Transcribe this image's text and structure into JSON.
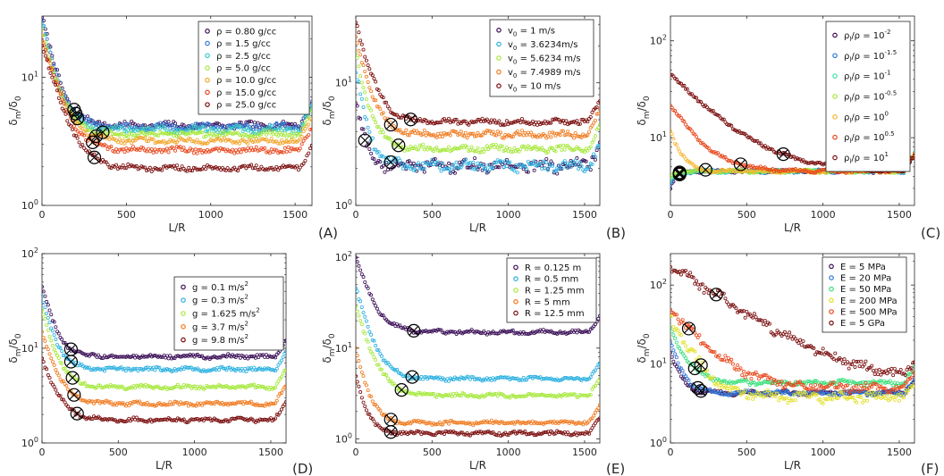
{
  "figure": {
    "xlabel": "L/R",
    "ylabel_main": "δ",
    "ylabel_num_sub": "m",
    "ylabel_sep": "/δ",
    "ylabel_den_sub": "0",
    "marker_symbol": "⊗"
  },
  "chart_data": [
    {
      "type": "scatter",
      "panel": "(A)",
      "xlabel": "L/R",
      "ylabel": "δm/δ0",
      "yscale": "log",
      "xlim": [
        0,
        1600
      ],
      "ylim": [
        1,
        30
      ],
      "xticks": [
        "0",
        "500",
        "1000",
        "1500"
      ],
      "yticks": [
        {
          "base": "10",
          "exp": "0",
          "v": 1
        },
        {
          "base": "10",
          "exp": "1",
          "v": 10
        }
      ],
      "legend_position": "top-right",
      "series": [
        {
          "name": "ρ = 0.80 g/cc",
          "color": "#3b0f57",
          "start": 30,
          "plateau": 4.2,
          "decay": 65,
          "noise": 0.05,
          "marker_x": 190
        },
        {
          "name": "ρ = 1.5 g/cc",
          "color": "#2e77d8",
          "start": 28,
          "plateau": 4.1,
          "decay": 65,
          "noise": 0.05,
          "marker_x": 200
        },
        {
          "name": "ρ = 2.5 g/cc",
          "color": "#38c9c4",
          "start": 26,
          "plateau": 3.9,
          "decay": 65,
          "noise": 0.05,
          "marker_x": 210
        },
        {
          "name": "ρ = 5.0 g/cc",
          "color": "#a5e83a",
          "start": 24,
          "plateau": 3.6,
          "decay": 70,
          "noise": 0.04,
          "marker_x": 360
        },
        {
          "name": "ρ = 10.0 g/cc",
          "color": "#f3a42a",
          "start": 22,
          "plateau": 3.2,
          "decay": 75,
          "noise": 0.04,
          "marker_x": 320
        },
        {
          "name": "ρ = 15.0 g/cc",
          "color": "#e8461a",
          "start": 20,
          "plateau": 2.7,
          "decay": 80,
          "noise": 0.04,
          "marker_x": 300
        },
        {
          "name": "ρ = 25.0 g/cc",
          "color": "#7a0d0d",
          "start": 18,
          "plateau": 1.95,
          "decay": 85,
          "noise": 0.04,
          "marker_x": 310
        }
      ]
    },
    {
      "type": "scatter",
      "panel": "(B)",
      "xlabel": "L/R",
      "ylabel": "δm/δ0",
      "yscale": "log",
      "xlim": [
        0,
        1600
      ],
      "ylim": [
        1,
        35
      ],
      "xticks": [
        "0",
        "500",
        "1000",
        "1500"
      ],
      "yticks": [
        {
          "base": "10",
          "exp": "0",
          "v": 1
        },
        {
          "base": "10",
          "exp": "1",
          "v": 10
        }
      ],
      "legend_position": "top-right",
      "series": [
        {
          "name": "v0 = 1 m/s",
          "color": "#3b0f57",
          "start": 7,
          "plateau": 2.1,
          "decay": 45,
          "noise": 0.1,
          "marker_x": 60
        },
        {
          "name": "v0 = 3.6234m/s",
          "color": "#2ab0e0",
          "start": 12,
          "plateau": 2.1,
          "decay": 55,
          "noise": 0.08,
          "marker_x": 230
        },
        {
          "name": "v0 = 5.6234 m/s",
          "color": "#a5e83a",
          "start": 17,
          "plateau": 2.9,
          "decay": 65,
          "noise": 0.05,
          "marker_x": 280
        },
        {
          "name": "v0 = 7.4989 m/s",
          "color": "#f07a1e",
          "start": 24,
          "plateau": 3.8,
          "decay": 70,
          "noise": 0.05,
          "marker_x": 230
        },
        {
          "name": "v0 = 10 m/s",
          "color": "#7a0d0d",
          "start": 32,
          "plateau": 4.8,
          "decay": 75,
          "noise": 0.04,
          "marker_x": 360
        }
      ]
    },
    {
      "type": "scatter",
      "panel": "(C)",
      "xlabel": "L/R",
      "ylabel": "δm/δ0",
      "yscale": "log",
      "xlim": [
        0,
        1600
      ],
      "ylim": [
        2,
        180
      ],
      "xticks": [
        "0",
        "500",
        "1000",
        "1500"
      ],
      "yticks": [
        {
          "base": "10",
          "exp": "1",
          "v": 10
        },
        {
          "base": "10",
          "exp": "2",
          "v": 100
        }
      ],
      "legend_position": "top-right",
      "series": [
        {
          "name": "ρl/ρ = 10^-2",
          "label_pre": "ρ",
          "label_sub": "l",
          "label_mid": "/ρ = 10",
          "label_sup": "-2",
          "color": "#3b0f57",
          "start": 3,
          "plateau": 4.5,
          "decay": 40,
          "noise": 0.03,
          "marker_x": 60
        },
        {
          "name": "ρl/ρ = 10^-1.5",
          "label_pre": "ρ",
          "label_sub": "l",
          "label_mid": "/ρ = 10",
          "label_sup": "-1.5",
          "color": "#2e77d8",
          "start": 3.2,
          "plateau": 4.5,
          "decay": 40,
          "noise": 0.03,
          "marker_x": 60
        },
        {
          "name": "ρl/ρ = 10^-1",
          "label_pre": "ρ",
          "label_sub": "l",
          "label_mid": "/ρ = 10",
          "label_sup": "-1",
          "color": "#38e0a8",
          "start": 3.5,
          "plateau": 4.5,
          "decay": 40,
          "noise": 0.03,
          "marker_x": 60
        },
        {
          "name": "ρl/ρ = 10^-0.5",
          "label_pre": "ρ",
          "label_sub": "l",
          "label_mid": "/ρ = 10",
          "label_sup": "-0.5",
          "color": "#a5e83a",
          "start": 4,
          "plateau": 4.5,
          "decay": 40,
          "noise": 0.03,
          "marker_x": 60
        },
        {
          "name": "ρl/ρ = 10^0",
          "label_pre": "ρ",
          "label_sub": "l",
          "label_mid": "/ρ = 10",
          "label_sup": "0",
          "color": "#f7b733",
          "start": 12,
          "plateau": 4.5,
          "decay": 60,
          "noise": 0.03,
          "marker_x": 230
        },
        {
          "name": "ρl/ρ = 10^0.5",
          "label_pre": "ρ",
          "label_sub": "l",
          "label_mid": "/ρ = 10",
          "label_sup": "0.5",
          "color": "#e8461a",
          "start": 22,
          "plateau": 4.5,
          "decay": 150,
          "noise": 0.03,
          "marker_x": 460
        },
        {
          "name": "ρl/ρ = 10^1",
          "label_pre": "ρ",
          "label_sub": "l",
          "label_mid": "/ρ = 10",
          "label_sup": "1",
          "color": "#7a0d0d",
          "start": 45,
          "plateau": 4.4,
          "decay": 260,
          "noise": 0.03,
          "marker_x": 740
        }
      ]
    },
    {
      "type": "scatter",
      "panel": "(D)",
      "xlabel": "L/R",
      "ylabel": "δm/δ0",
      "yscale": "log",
      "xlim": [
        0,
        1600
      ],
      "ylim": [
        1,
        100
      ],
      "xticks": [
        "0",
        "500",
        "1000",
        "1500"
      ],
      "yticks": [
        {
          "base": "10",
          "exp": "0",
          "v": 1
        },
        {
          "base": "10",
          "exp": "1",
          "v": 10
        },
        {
          "base": "10",
          "exp": "2",
          "v": 100
        }
      ],
      "legend_position": "top-right",
      "series": [
        {
          "name": "g = 0.1 m/s^2",
          "label_pre": "g = 0.1 m/s",
          "label_sup": "2",
          "color": "#3b0f57",
          "start": 45,
          "plateau": 8.2,
          "decay": 60,
          "noise": 0.04,
          "marker_x": 190
        },
        {
          "name": "g = 0.3 m/s^2",
          "label_pre": "g = 0.3 m/s",
          "label_sup": "2",
          "color": "#2ab0e0",
          "start": 35,
          "plateau": 6.0,
          "decay": 60,
          "noise": 0.04,
          "marker_x": 190
        },
        {
          "name": "g = 1.625 m/s^2",
          "label_pre": "g = 1.625 m/s",
          "label_sup": "2",
          "color": "#a5e83a",
          "start": 25,
          "plateau": 3.9,
          "decay": 65,
          "noise": 0.04,
          "marker_x": 200
        },
        {
          "name": "g = 3.7 m/s^2",
          "label_pre": "g = 3.7 m/s",
          "label_sup": "2",
          "color": "#f07a1e",
          "start": 15,
          "plateau": 2.6,
          "decay": 70,
          "noise": 0.04,
          "marker_x": 210
        },
        {
          "name": "g = 9.8 m/s^2",
          "label_pre": "g = 9.8 m/s",
          "label_sup": "2",
          "color": "#7a0d0d",
          "start": 8,
          "plateau": 1.75,
          "decay": 75,
          "noise": 0.04,
          "marker_x": 230
        }
      ]
    },
    {
      "type": "scatter",
      "panel": "(E)",
      "xlabel": "L/R",
      "ylabel": "δm/δ0",
      "yscale": "log",
      "xlim": [
        0,
        1600
      ],
      "ylim": [
        0.9,
        110
      ],
      "xticks": [
        "0",
        "500",
        "1000",
        "1500"
      ],
      "yticks": [
        {
          "base": "10",
          "exp": "0",
          "v": 1
        },
        {
          "base": "10",
          "exp": "1",
          "v": 10
        },
        {
          "base": "10",
          "exp": "2",
          "v": 100
        }
      ],
      "legend_position": "top-right",
      "series": [
        {
          "name": "R = 0.125 m",
          "color": "#3b0f57",
          "start": 100,
          "plateau": 15,
          "decay": 75,
          "noise": 0.04,
          "marker_x": 380
        },
        {
          "name": "R = 0.5 mm",
          "color": "#2ab0e0",
          "start": 45,
          "plateau": 4.6,
          "decay": 70,
          "noise": 0.04,
          "marker_x": 370
        },
        {
          "name": "R = 1.25 mm",
          "color": "#a5e83a",
          "start": 28,
          "plateau": 3.0,
          "decay": 75,
          "noise": 0.04,
          "marker_x": 300
        },
        {
          "name": "R = 5 mm",
          "color": "#f07a1e",
          "start": 10,
          "plateau": 1.5,
          "decay": 55,
          "noise": 0.04,
          "marker_x": 230
        },
        {
          "name": "R = 12.5 mm",
          "color": "#7a0d0d",
          "start": 5,
          "plateau": 1.15,
          "decay": 50,
          "noise": 0.04,
          "marker_x": 230
        }
      ]
    },
    {
      "type": "scatter",
      "panel": "(F)",
      "xlabel": "L/R",
      "ylabel": "δm/δ0",
      "yscale": "log",
      "xlim": [
        0,
        1600
      ],
      "ylim": [
        1,
        250
      ],
      "xticks": [
        "0",
        "500",
        "1000",
        "1500"
      ],
      "yticks": [
        {
          "base": "10",
          "exp": "0",
          "v": 1
        },
        {
          "base": "10",
          "exp": "1",
          "v": 10
        },
        {
          "base": "10",
          "exp": "2",
          "v": 100
        }
      ],
      "legend_position": "top-right",
      "series": [
        {
          "name": "E = 5 MPa",
          "color": "#3b0f57",
          "start": 14,
          "plateau": 4.3,
          "decay": 55,
          "noise": 0.05,
          "marker_x": 200
        },
        {
          "name": "E = 20 MPa",
          "color": "#2e77d8",
          "start": 18,
          "plateau": 4.3,
          "decay": 60,
          "noise": 0.05,
          "marker_x": 180
        },
        {
          "name": "E = 50 MPa",
          "color": "#38e07a",
          "start": 28,
          "plateau": 5.8,
          "decay": 80,
          "noise": 0.06,
          "marker_x": 160
        },
        {
          "name": "E = 200 MPa",
          "color": "#e3e02a",
          "start": 40,
          "plateau": 3.8,
          "decay": 110,
          "noise": 0.12,
          "marker_x": 200
        },
        {
          "name": "E = 500 MPa",
          "color": "#e8461a",
          "start": 50,
          "plateau": 5.0,
          "decay": 180,
          "noise": 0.1,
          "marker_x": 120
        },
        {
          "name": "E = 5 GPa",
          "color": "#7a0d0d",
          "start": 180,
          "plateau": 5.5,
          "decay": 330,
          "noise": 0.12,
          "marker_x": 300
        }
      ]
    }
  ]
}
